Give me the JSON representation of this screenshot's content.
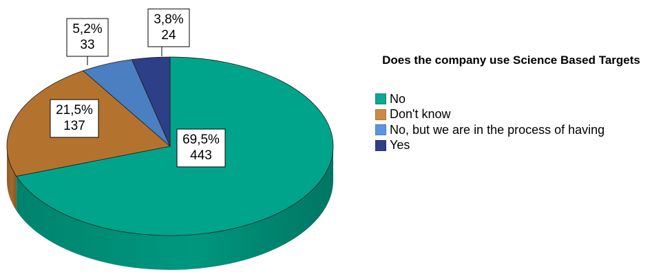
{
  "chart_data": {
    "type": "pie",
    "three_d": true,
    "title": "Does the company use Science Based Targets",
    "legend_position": "right",
    "labels": [
      "No",
      "Don't know",
      "No, but we are in the process of having",
      "Yes"
    ],
    "values": [
      443,
      137,
      33,
      24
    ],
    "percent_labels": [
      "69,5%",
      "21,5%",
      "5,2%",
      "3,8%"
    ],
    "count_labels": [
      "443",
      "137",
      "33",
      "24"
    ],
    "colors": [
      "#00a48a",
      "#b3732f",
      "#4a7fc2",
      "#2d3f86"
    ],
    "legend_colors": [
      "#11a592",
      "#cd8a45",
      "#5b94df",
      "#2d3f86"
    ]
  }
}
